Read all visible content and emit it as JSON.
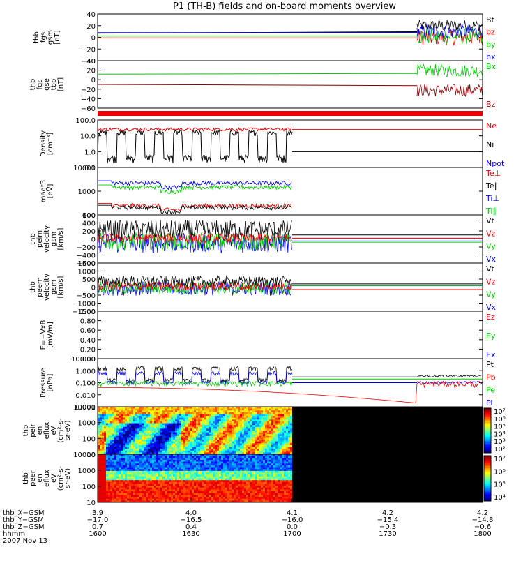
{
  "title": "P1 (TH-B) fields and on-board moments overview",
  "colors": {
    "black": "#000000",
    "red": "#ee0000",
    "green": "#00cc00",
    "blue": "#0000ee",
    "darkred": "#8b0000"
  },
  "chart_data": [
    {
      "type": "line",
      "panel": "fgs_gsm",
      "ylabel": [
        "thb",
        "fgs",
        "gsm",
        "[nT]"
      ],
      "ylim": [
        -40,
        40
      ],
      "yticks": [
        "40",
        "20",
        "0",
        "−20",
        "−40"
      ],
      "legend": [
        {
          "label": "Bt",
          "color": "#000000"
        },
        {
          "label": "bz",
          "color": "#ee0000"
        },
        {
          "label": "by",
          "color": "#00cc00"
        },
        {
          "label": "bx",
          "color": "#0000ee"
        }
      ],
      "series": [
        {
          "name": "Bt",
          "color": "#000000",
          "quiet": 7,
          "active": 20,
          "spread": 10
        },
        {
          "name": "bz",
          "color": "#ee0000",
          "quiet": -1,
          "active": 0,
          "spread": 14
        },
        {
          "name": "by",
          "color": "#00cc00",
          "quiet": 2,
          "active": 2,
          "spread": 14
        },
        {
          "name": "bx",
          "color": "#0000ee",
          "quiet": 8,
          "active": 10,
          "spread": 12
        }
      ]
    },
    {
      "type": "line",
      "panel": "fgs_gse_tbp",
      "ylabel": [
        "thb",
        "fgs",
        "gse",
        "tbp",
        "[nT]"
      ],
      "ylim": [
        -80,
        40
      ],
      "yticks": [
        "40",
        "20",
        "0",
        "−20",
        "−40",
        "−60"
      ],
      "legend": [
        {
          "label": "Bx",
          "color": "#00cc00"
        },
        {
          "label": "Bz",
          "color": "#8b0000"
        }
      ],
      "series": [
        {
          "name": "Bx",
          "color": "#00cc00",
          "quiet": 6,
          "active": 15,
          "spread": 16
        },
        {
          "name": "Bz",
          "color": "#8b0000",
          "quiet": -20,
          "active": -35,
          "spread": 16
        }
      ]
    },
    {
      "type": "line",
      "panel": "density",
      "scale": "log",
      "ylabel": [
        "Density",
        "[cm⁻³]"
      ],
      "ylim": [
        0.1,
        100
      ],
      "yticks": [
        "100.0",
        "10.0",
        "1.0",
        "0.1"
      ],
      "legend": [
        {
          "label": "Ne",
          "color": "#ee0000"
        },
        {
          "label": "Ni",
          "color": "#000000"
        },
        {
          "label": "Npot",
          "color": "#0000ee"
        }
      ],
      "series": [
        {
          "name": "Ne",
          "color": "#ee0000",
          "value": 25,
          "after": 25
        },
        {
          "name": "Ni",
          "color": "#000000",
          "low": 0.3,
          "high": 20,
          "after": 1
        }
      ]
    },
    {
      "type": "line",
      "panel": "temperature",
      "scale": "log",
      "ylabel": [
        "magt3",
        "[eV]"
      ],
      "ylim": [
        30,
        10000
      ],
      "yticks": [
        "10000",
        "1000",
        "100"
      ],
      "legend": [
        {
          "label": "Te⊥",
          "color": "#ee0000"
        },
        {
          "label": "Te∥",
          "color": "#000000"
        },
        {
          "label": "Ti⊥",
          "color": "#0000ee"
        },
        {
          "label": "Ti∥",
          "color": "#00cc00"
        }
      ],
      "series": [
        {
          "name": "Ti⊥",
          "color": "#0000ee",
          "value": 1500
        },
        {
          "name": "Ti∥",
          "color": "#00cc00",
          "value": 900
        },
        {
          "name": "Te⊥",
          "color": "#ee0000",
          "value": 95
        },
        {
          "name": "Te∥",
          "color": "#000000",
          "value": 75
        }
      ]
    },
    {
      "type": "line",
      "panel": "peim_velocity",
      "ylabel": [
        "thb",
        "peim",
        "velocity",
        "gsm",
        "[km/s]"
      ],
      "ylim": [
        -600,
        600
      ],
      "yticks": [
        "600",
        "400",
        "200",
        "0",
        "−200",
        "−400",
        "−600"
      ],
      "legend": [
        {
          "label": "Vt",
          "color": "#000000"
        },
        {
          "label": "Vz",
          "color": "#ee0000"
        },
        {
          "label": "Vy",
          "color": "#00cc00"
        },
        {
          "label": "Vx",
          "color": "#0000ee"
        }
      ],
      "series": [
        {
          "name": "Vx",
          "color": "#0000ee",
          "center": -100,
          "spread": 250,
          "after": -50
        },
        {
          "name": "Vy",
          "color": "#00cc00",
          "center": -60,
          "spread": 220,
          "after": -80
        },
        {
          "name": "Vt",
          "color": "#000000",
          "center": 220,
          "spread": 250,
          "after": 100
        },
        {
          "name": "Vz",
          "color": "#ee0000",
          "center": 20,
          "spread": 120,
          "after": 20
        }
      ]
    },
    {
      "type": "line",
      "panel": "peem_velocity",
      "ylabel": [
        "thb",
        "peem",
        "velocity",
        "gsm",
        "[km/s]"
      ],
      "ylim": [
        -1500,
        1500
      ],
      "yticks": [
        "1500",
        "1000",
        "500",
        "0",
        "−500",
        "−1000",
        "−1500"
      ],
      "legend": [
        {
          "label": "Vt",
          "color": "#000000"
        },
        {
          "label": "Vz",
          "color": "#ee0000"
        },
        {
          "label": "Vy",
          "color": "#00cc00"
        },
        {
          "label": "Vx",
          "color": "#0000ee"
        }
      ],
      "series": [
        {
          "name": "Vx",
          "color": "#0000ee",
          "center": -80,
          "spread": 450,
          "after": 100
        },
        {
          "name": "Vy",
          "color": "#00cc00",
          "center": -50,
          "spread": 400,
          "after": 80
        },
        {
          "name": "Vt",
          "color": "#000000",
          "center": 350,
          "spread": 350,
          "after": 200
        },
        {
          "name": "Vz",
          "color": "#ee0000",
          "center": 50,
          "spread": 250,
          "after": -150
        }
      ]
    },
    {
      "type": "line",
      "panel": "efield",
      "ylabel": [
        "E=−VxB",
        "[mV/m]"
      ],
      "ylim": [
        0,
        1
      ],
      "yticks": [
        "1.00",
        "0.80",
        "0.60",
        "0.40",
        "0.20",
        "0.00"
      ],
      "legend": [
        {
          "label": "Ez",
          "color": "#ee0000"
        },
        {
          "label": "Ey",
          "color": "#00cc00"
        },
        {
          "label": "Ex",
          "color": "#0000ee"
        }
      ],
      "series": []
    },
    {
      "type": "line",
      "panel": "pressure",
      "scale": "log",
      "ylabel": [
        "Pressure",
        "[nPa]"
      ],
      "ylim": [
        0.001,
        10
      ],
      "yticks": [
        "10.000",
        "1.000",
        "0.100",
        "0.010",
        "0.001"
      ],
      "legend": [
        {
          "label": "Pt",
          "color": "#000000"
        },
        {
          "label": "Pb",
          "color": "#ee0000"
        },
        {
          "label": "Pe",
          "color": "#00cc00"
        },
        {
          "label": "Pi",
          "color": "#0000ee"
        }
      ],
      "series": [
        {
          "name": "Pt",
          "color": "#000000",
          "low": 0.15,
          "high": 2.0,
          "after": 0.3,
          "late": 0.35
        },
        {
          "name": "Pi",
          "color": "#0000ee",
          "low": 0.1,
          "high": 0.8,
          "after": 0.1,
          "late": 0.1
        },
        {
          "name": "Pe",
          "color": "#00cc00",
          "value": 0.1,
          "after": 0.2,
          "late": 0.15
        },
        {
          "name": "Pb",
          "color": "#ee0000",
          "start": 0.04,
          "end": 0.002,
          "late": 0.1
        }
      ]
    },
    {
      "type": "heatmap",
      "panel": "peir_eflux",
      "scale": "log",
      "ylabel": [
        "thb",
        "peir",
        "en",
        "eflux",
        "eV",
        "(cm²-s-",
        "sr-eV)"
      ],
      "ylim": [
        10,
        10000
      ],
      "yticks": [
        "10000",
        "1000",
        "100",
        "10"
      ],
      "colorbar_ticks": [
        "10⁷",
        "10⁶",
        "10⁵",
        "10⁴",
        "10³",
        "10²"
      ]
    },
    {
      "type": "heatmap",
      "panel": "peer_eflux",
      "scale": "log",
      "ylabel": [
        "thb",
        "peer",
        "en",
        "eflux",
        "eV",
        "(cm²-s-",
        "sr-eV)"
      ],
      "ylim": [
        10,
        10000
      ],
      "yticks": [
        "10000",
        "1000",
        "100",
        "10"
      ],
      "colorbar_ticks": [
        "10⁷",
        "10⁶",
        "10⁵",
        "10⁴"
      ]
    }
  ],
  "x_axis": {
    "row_labels": [
      "thb_X−GSM",
      "thb_Y−GSM",
      "thb_Z−GSM",
      "hhmm",
      "2007 Nov 13"
    ],
    "ticks": [
      {
        "x_gsm": "3.9",
        "y_gsm": "−17.0",
        "z_gsm": "0.7",
        "hhmm": "1600"
      },
      {
        "x_gsm": "4.0",
        "y_gsm": "−16.5",
        "z_gsm": "0.4",
        "hhmm": "1630"
      },
      {
        "x_gsm": "4.1",
        "y_gsm": "−16.0",
        "z_gsm": "0.0",
        "hhmm": "1700"
      },
      {
        "x_gsm": "4.2",
        "y_gsm": "−15.4",
        "z_gsm": "−0.3",
        "hhmm": "1730"
      },
      {
        "x_gsm": "4.2",
        "y_gsm": "−14.8",
        "z_gsm": "−0.6",
        "hhmm": "1800"
      }
    ]
  }
}
